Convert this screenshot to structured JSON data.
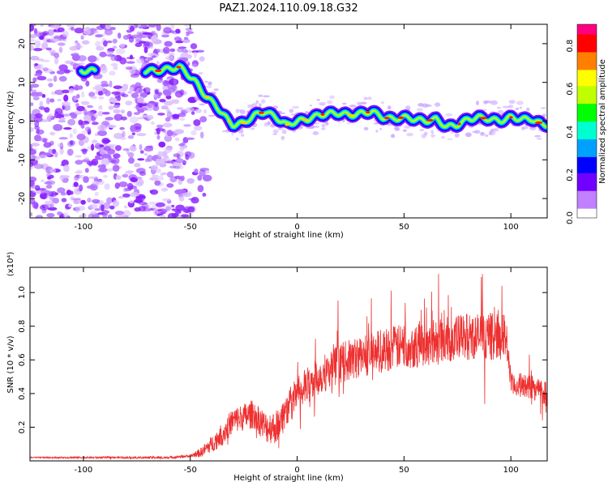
{
  "title": "PAZ1.2024.110.09.18.G32",
  "chart_data": [
    {
      "type": "heatmap",
      "xlabel": "Height of straight line (km)",
      "ylabel": "Frequency (Hz)",
      "xlim": [
        -125,
        117
      ],
      "ylim": [
        -25,
        25
      ],
      "xticks": [
        -100,
        -50,
        0,
        50,
        100
      ],
      "yticks": [
        -20,
        -10,
        0,
        10,
        20
      ],
      "colorbar": {
        "label": "Normalized spectral amplitude",
        "range": [
          0,
          0.9
        ],
        "ticks": [
          0.0,
          0.2,
          0.4,
          0.6,
          0.8
        ],
        "colors": [
          "#ffffff",
          "#c080ff",
          "#7000ff",
          "#0000ff",
          "#00a0ff",
          "#00ffd0",
          "#00ff00",
          "#c0ff00",
          "#ffff00",
          "#ff8000",
          "#ff0000",
          "#ff0080"
        ]
      },
      "ridge": {
        "x": [
          -100,
          -95,
          -70,
          -65,
          -60,
          -55,
          -52,
          -48,
          -45,
          -42,
          -38,
          -35,
          -32,
          -30,
          -25,
          -20,
          -15,
          -10,
          -5,
          0,
          5,
          10,
          15,
          20,
          25,
          30,
          35,
          40,
          45,
          50,
          55,
          60,
          65,
          70,
          75,
          80,
          85,
          90,
          95,
          100,
          105,
          110,
          115
        ],
        "y": [
          13,
          13,
          13,
          13,
          13.5,
          14,
          12.5,
          10.5,
          8,
          6,
          4,
          2,
          0,
          -1,
          -0.5,
          1.5,
          2.5,
          1,
          -1,
          0,
          0.5,
          1.5,
          2,
          2,
          1.5,
          2,
          2.5,
          1,
          0.5,
          1,
          0.5,
          0,
          0.5,
          -1.5,
          -1,
          0.5,
          1,
          0.5,
          0,
          1,
          0.5,
          0.5,
          -1
        ]
      },
      "noise_region": [
        -125,
        -50
      ]
    },
    {
      "type": "line",
      "xlabel": "Height of straight line (km)",
      "ylabel": "SNR (10 * v/v)",
      "y_multiplier": "(x10⁴)",
      "xlim": [
        -125,
        117
      ],
      "ylim": [
        0,
        1.15
      ],
      "xticks": [
        -100,
        -50,
        0,
        50,
        100
      ],
      "yticks": [
        0.2,
        0.4,
        0.6,
        0.8,
        1.0
      ],
      "color": "#ee3030",
      "envelope": {
        "x": [
          -125,
          -100,
          -80,
          -60,
          -50,
          -45,
          -40,
          -35,
          -30,
          -25,
          -20,
          -15,
          -10,
          -5,
          0,
          5,
          10,
          20,
          30,
          40,
          50,
          60,
          70,
          80,
          90,
          98,
          100,
          105,
          110,
          117
        ],
        "y": [
          0.02,
          0.02,
          0.02,
          0.02,
          0.03,
          0.05,
          0.1,
          0.16,
          0.24,
          0.26,
          0.28,
          0.2,
          0.2,
          0.3,
          0.4,
          0.45,
          0.5,
          0.58,
          0.62,
          0.66,
          0.68,
          0.7,
          0.72,
          0.74,
          0.74,
          0.74,
          0.45,
          0.45,
          0.44,
          0.4
        ]
      },
      "noise_amplitude": {
        "x": [
          -125,
          -50,
          -35,
          -10,
          20,
          60,
          98,
          100,
          117
        ],
        "y": [
          0.004,
          0.008,
          0.07,
          0.1,
          0.12,
          0.14,
          0.14,
          0.07,
          0.08
        ]
      }
    }
  ]
}
